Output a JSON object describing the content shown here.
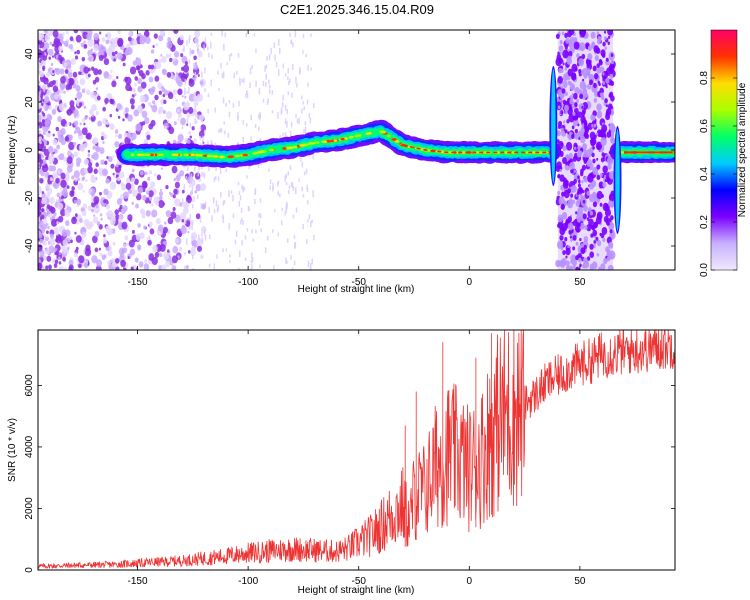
{
  "title": "C2E1.2025.346.15.04.R09",
  "chart_data": [
    {
      "type": "heatmap",
      "xlabel": "Height of straight line (km)",
      "ylabel": "Frequency (Hz)",
      "xlim": [
        -195,
        93
      ],
      "ylim": [
        -50,
        50
      ],
      "xticks": [
        -150,
        -100,
        -50,
        0,
        50
      ],
      "yticks": [
        -40,
        -20,
        0,
        20,
        40
      ],
      "colorbar": {
        "label": "Normalized spectral amplitude",
        "range": [
          0,
          1
        ],
        "ticks": [
          0.0,
          0.2,
          0.4,
          0.6,
          0.8
        ],
        "tick_labels": [
          "0.0",
          "0.2",
          "0.4",
          "0.6",
          "0.8"
        ],
        "colormap": [
          "#f0e8ff",
          "#c8b0ff",
          "#7b00ff",
          "#0000ff",
          "#00ccff",
          "#00ff66",
          "#aaff00",
          "#ffdd00",
          "#ff3300",
          "#ff0066"
        ]
      },
      "ridge": {
        "x": [
          -155,
          -140,
          -125,
          -110,
          -100,
          -90,
          -80,
          -70,
          -60,
          -50,
          -45,
          -40,
          -35,
          -30,
          -20,
          -10,
          0,
          10,
          20,
          30,
          37
        ],
        "freq": [
          -2,
          -2,
          -2,
          -3,
          -2,
          0,
          1,
          3,
          4,
          6,
          7,
          8,
          5,
          2,
          0,
          -1,
          -1,
          -1,
          -1,
          -1,
          -1
        ]
      },
      "segment2": {
        "x": [
          68,
          92
        ],
        "freq": [
          -1,
          -1
        ]
      },
      "noise_band": {
        "x": [
          40,
          65
        ]
      },
      "spikes": [
        {
          "x": 38,
          "freq_min": -15,
          "freq_max": 35
        },
        {
          "x": 67,
          "freq_min": -35,
          "freq_max": 10
        }
      ]
    },
    {
      "type": "line",
      "xlabel": "Height of straight line (km)",
      "ylabel": "SNR (10 * v/v)",
      "xlim": [
        -195,
        93
      ],
      "ylim": [
        0,
        7800
      ],
      "xticks": [
        -150,
        -100,
        -50,
        0,
        50
      ],
      "yticks": [
        0,
        2000,
        4000,
        6000
      ],
      "line_color": "#ee3333",
      "series": [
        {
          "x": [
            -195,
            -180,
            -160,
            -150,
            -140,
            -130,
            -120,
            -110,
            -100,
            -90,
            -80,
            -70,
            -60,
            -55,
            -50,
            -45,
            -40,
            -35,
            -30,
            -27,
            -25,
            -20,
            -15,
            -10,
            -5,
            0,
            5,
            10,
            15,
            20,
            25,
            30,
            35,
            40,
            45,
            50,
            55,
            60,
            70,
            80,
            93
          ],
          "y": [
            120,
            150,
            180,
            220,
            260,
            300,
            380,
            450,
            550,
            620,
            680,
            640,
            600,
            700,
            900,
            1100,
            1400,
            1800,
            2100,
            1500,
            2400,
            2600,
            3400,
            3800,
            3700,
            3300,
            3600,
            4500,
            5000,
            5200,
            5400,
            5700,
            6100,
            6300,
            6500,
            6700,
            6800,
            7000,
            7100,
            7200,
            7350
          ]
        }
      ],
      "peaks": [
        {
          "x": -29,
          "y": 4700
        },
        {
          "x": -24,
          "y": 5800
        },
        {
          "x": -12,
          "y": 7400
        },
        {
          "x": 10,
          "y": 7700
        },
        {
          "x": 3,
          "y": 6900
        }
      ]
    }
  ]
}
